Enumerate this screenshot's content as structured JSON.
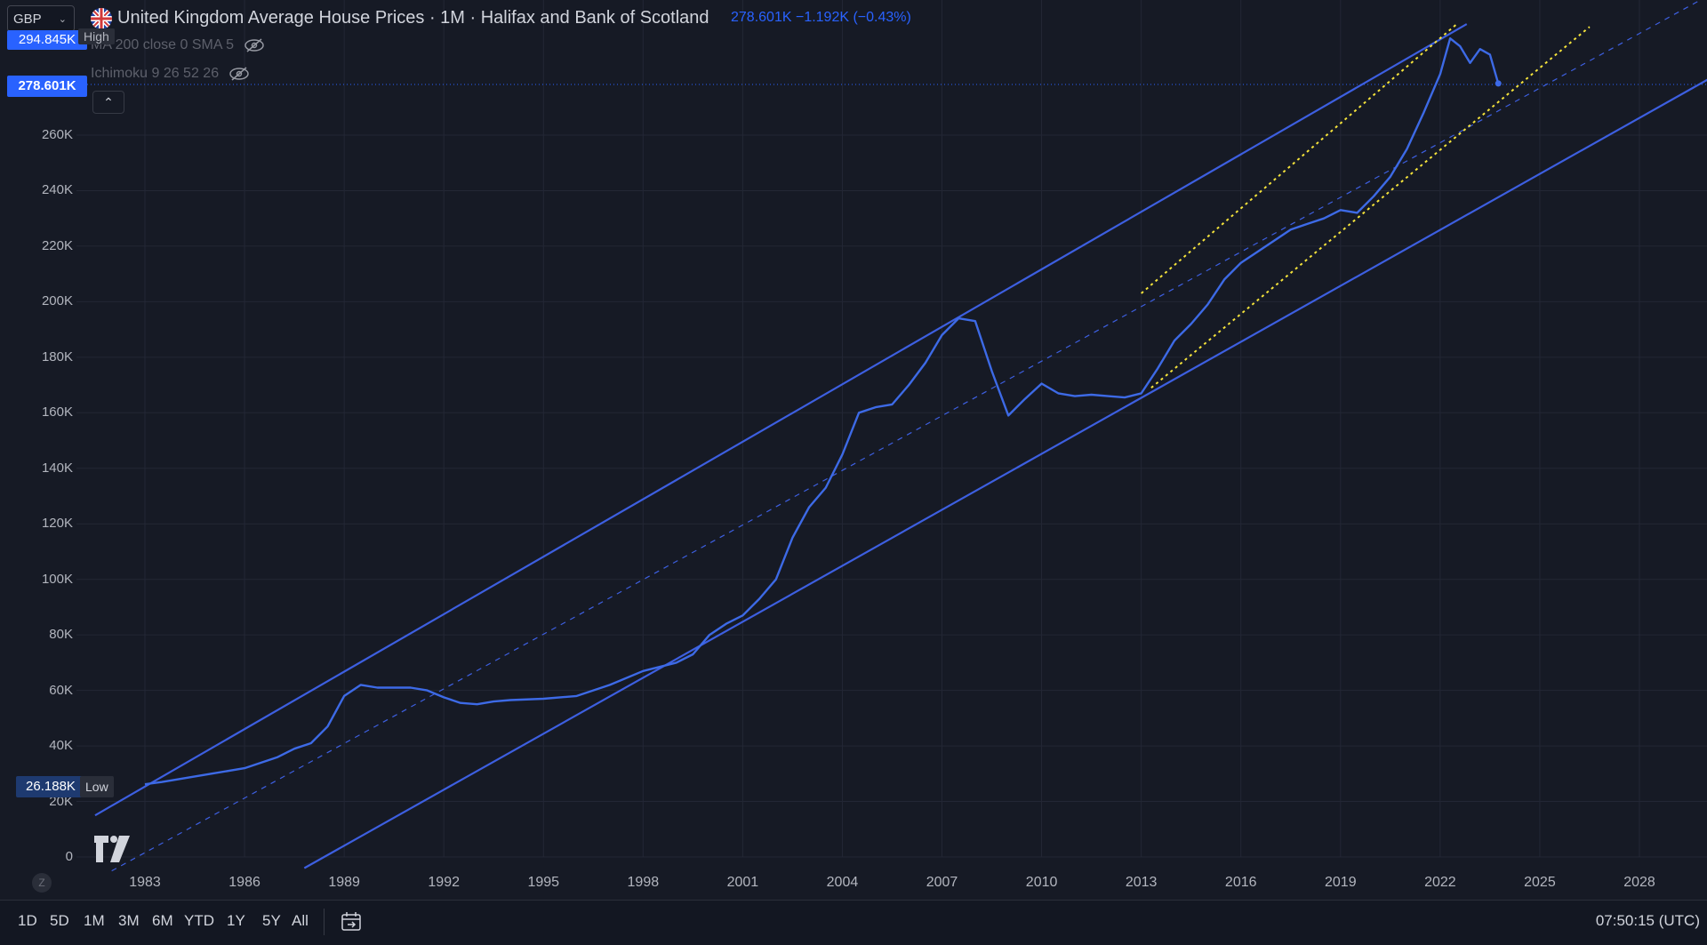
{
  "currency": {
    "label": "GBP"
  },
  "header": {
    "title": "United Kingdom Average House Prices · 1M · Halifax and Bank of Scotland",
    "last": "278.601K",
    "change": "−1.192K (−0.43%)"
  },
  "indicators": [
    {
      "label": "MA 200 close 0 SMA 5"
    },
    {
      "label": "Ichimoku 9 26 52 26"
    }
  ],
  "price_tags": {
    "high_value": "294.845K",
    "high_label": "High",
    "last_value": "278.601K",
    "low_value": "26.188K",
    "low_label": "Low"
  },
  "bottom": {
    "ranges": [
      "1D",
      "5D",
      "1M",
      "3M",
      "6M",
      "YTD",
      "1Y",
      "5Y",
      "All"
    ],
    "z_label": "Z",
    "clock": "07:50:15 (UTC)"
  },
  "colors": {
    "background": "#161a25",
    "series": "#3d6ae6",
    "channel": "#3d5fe0",
    "yellow": "#f5e33b",
    "grid": "#232735"
  },
  "chart_data": {
    "type": "line",
    "title": "United Kingdom Average House Prices · 1M · Halifax and Bank of Scotland",
    "xlabel": "",
    "ylabel": "",
    "xlim": [
      1981.5,
      2030.5
    ],
    "ylim": [
      0,
      295000
    ],
    "grid": true,
    "x_ticks": [
      "1983",
      "1986",
      "1989",
      "1992",
      "1995",
      "1998",
      "2001",
      "2004",
      "2007",
      "2010",
      "2013",
      "2016",
      "2019",
      "2022",
      "2025",
      "2028"
    ],
    "y_ticks": [
      "0",
      "20K",
      "40K",
      "60K",
      "80K",
      "100K",
      "120K",
      "140K",
      "160K",
      "180K",
      "200K",
      "220K",
      "240K",
      "260K"
    ],
    "y_tick_values": [
      0,
      20000,
      40000,
      60000,
      80000,
      100000,
      120000,
      140000,
      160000,
      180000,
      200000,
      220000,
      240000,
      260000
    ],
    "series": [
      {
        "x": [
          1983.0,
          1983.5,
          1984.0,
          1985.0,
          1986.0,
          1987.0,
          1987.5,
          1988.0,
          1988.5,
          1989.0,
          1989.5,
          1990.0,
          1990.5,
          1991.0,
          1991.5,
          1992.0,
          1992.5,
          1993.0,
          1993.5,
          1994.0,
          1995.0,
          1996.0,
          1997.0,
          1998.0,
          1999.0,
          1999.5,
          2000.0,
          2000.5,
          2001.0,
          2001.5,
          2002.0,
          2002.5,
          2003.0,
          2003.5,
          2004.0,
          2004.5,
          2005.0,
          2005.5,
          2006.0,
          2006.5,
          2007.0,
          2007.5,
          2008.0,
          2008.5,
          2009.0,
          2009.5,
          2010.0,
          2010.5,
          2011.0,
          2011.5,
          2012.0,
          2012.5,
          2013.0,
          2013.5,
          2014.0,
          2014.5,
          2015.0,
          2015.5,
          2016.0,
          2016.5,
          2017.0,
          2017.5,
          2018.0,
          2018.5,
          2019.0,
          2019.5,
          2020.0,
          2020.5,
          2021.0,
          2021.5,
          2022.0,
          2022.3,
          2022.6,
          2022.9,
          2023.2,
          2023.5,
          2023.75
        ],
        "values": [
          26188,
          27000,
          28000,
          30000,
          32000,
          36000,
          39000,
          41000,
          47000,
          58000,
          62000,
          61000,
          61000,
          61000,
          60000,
          57500,
          55500,
          55000,
          56000,
          56500,
          57000,
          58000,
          62000,
          67000,
          70000,
          73000,
          80000,
          84000,
          87000,
          93000,
          100000,
          115000,
          126000,
          133000,
          145000,
          160000,
          162000,
          163000,
          170000,
          178000,
          188000,
          194000,
          193000,
          175000,
          159000,
          165000,
          170500,
          167000,
          166000,
          166500,
          166000,
          165500,
          167000,
          176000,
          186000,
          192000,
          199000,
          208000,
          214000,
          218000,
          222000,
          226000,
          228000,
          230000,
          233000,
          232000,
          238000,
          245000,
          255000,
          268000,
          282000,
          294845,
          292000,
          286000,
          291000,
          289000,
          278601
        ]
      }
    ],
    "channel_lines": [
      {
        "style": "solid",
        "x": [
          1981.5,
          2022.8
        ],
        "values": [
          15000,
          300000
        ]
      },
      {
        "style": "solid",
        "x": [
          1987.8,
          2030.5
        ],
        "values": [
          -4000,
          283000
        ]
      },
      {
        "style": "dashed",
        "x": [
          1982.0,
          2030.5
        ],
        "values": [
          -5000,
          313000
        ]
      },
      {
        "style": "dotted",
        "color": "yellow",
        "x": [
          2013.0,
          2022.5
        ],
        "values": [
          203000,
          300000
        ]
      },
      {
        "style": "dotted",
        "color": "yellow",
        "x": [
          2013.3,
          2026.5
        ],
        "values": [
          169000,
          299000
        ]
      }
    ],
    "annotations": [
      "High",
      "Low"
    ]
  }
}
